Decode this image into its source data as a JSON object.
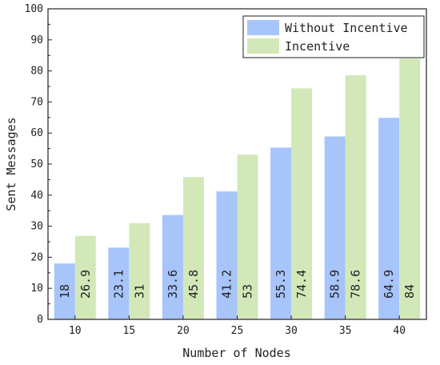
{
  "chart_data": {
    "type": "bar",
    "categories": [
      "10",
      "15",
      "20",
      "25",
      "30",
      "35",
      "40"
    ],
    "series": [
      {
        "name": "Without Incentive",
        "values": [
          18,
          23.1,
          33.6,
          41.2,
          55.3,
          58.9,
          64.9
        ],
        "color": "#a7c4fb"
      },
      {
        "name": "Incentive",
        "values": [
          26.9,
          31,
          45.8,
          53,
          74.4,
          78.6,
          84
        ],
        "color": "#d2e8b8"
      }
    ],
    "data_labels": [
      [
        "18",
        "23.1",
        "33.6",
        "41.2",
        "55.3",
        "58.9",
        "64.9"
      ],
      [
        "26.9",
        "31",
        "45.8",
        "53",
        "74.4",
        "78.6",
        "84"
      ]
    ],
    "xlabel": "Number of Nodes",
    "ylabel": "Sent Messages",
    "ylim": [
      0,
      100
    ],
    "yticks": [
      "0",
      "10",
      "20",
      "30",
      "40",
      "50",
      "60",
      "70",
      "80",
      "90",
      "100"
    ],
    "grid": false,
    "legend_position": "top-right"
  }
}
